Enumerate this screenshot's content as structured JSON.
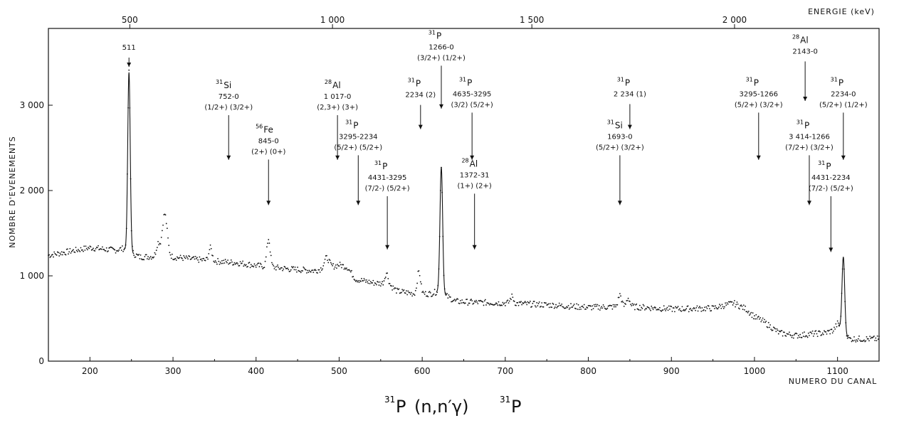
{
  "chart_data": {
    "type": "line",
    "title": "31P (n,n'γ) 31P",
    "xlabel": "NUMERO DU CANAL",
    "ylabel": "NOMBRE D'EVENEMENTS",
    "x2label": "ENERGIE (keV)",
    "xlim": [
      150,
      1150
    ],
    "ylim": [
      0,
      3900
    ],
    "xticks": [
      200,
      300,
      400,
      500,
      600,
      700,
      800,
      900,
      1000,
      1100
    ],
    "xtick_labels": [
      "200",
      "300",
      "400",
      "500",
      "600",
      "700",
      "800",
      "900",
      "1000",
      "1100"
    ],
    "yticks": [
      0,
      1000,
      2000,
      3000
    ],
    "ytick_labels": [
      "0",
      "1 000",
      "2 000",
      "3 000"
    ],
    "energy_ticks": [
      {
        "channel": 248,
        "label": "500"
      },
      {
        "channel": 492,
        "label": "1 000"
      },
      {
        "channel": 732,
        "label": "1 500"
      },
      {
        "channel": 976,
        "label": "2 000"
      }
    ],
    "grid": false,
    "spectrum": {
      "background": [
        [
          150,
          1240
        ],
        [
          200,
          1330
        ],
        [
          230,
          1300
        ],
        [
          240,
          1320
        ],
        [
          260,
          1220
        ],
        [
          280,
          1230
        ],
        [
          300,
          1220
        ],
        [
          340,
          1180
        ],
        [
          380,
          1150
        ],
        [
          400,
          1120
        ],
        [
          440,
          1080
        ],
        [
          470,
          1060
        ],
        [
          490,
          1100
        ],
        [
          500,
          1130
        ],
        [
          510,
          1100
        ],
        [
          520,
          960
        ],
        [
          540,
          920
        ],
        [
          560,
          900
        ],
        [
          570,
          820
        ],
        [
          590,
          790
        ],
        [
          610,
          790
        ],
        [
          620,
          820
        ],
        [
          640,
          700
        ],
        [
          660,
          690
        ],
        [
          700,
          680
        ],
        [
          750,
          660
        ],
        [
          800,
          630
        ],
        [
          850,
          640
        ],
        [
          900,
          610
        ],
        [
          950,
          620
        ],
        [
          975,
          680
        ],
        [
          990,
          610
        ],
        [
          1000,
          520
        ],
        [
          1010,
          470
        ],
        [
          1030,
          330
        ],
        [
          1050,
          300
        ],
        [
          1070,
          320
        ],
        [
          1085,
          330
        ],
        [
          1095,
          360
        ],
        [
          1100,
          440
        ],
        [
          1110,
          300
        ],
        [
          1115,
          260
        ],
        [
          1150,
          260
        ]
      ],
      "peaks": [
        {
          "center": 247,
          "height": 2100,
          "sigma": 1.5
        },
        {
          "center": 290,
          "height": 500,
          "sigma": 3
        },
        {
          "center": 282,
          "height": 150,
          "sigma": 2
        },
        {
          "center": 345,
          "height": 150,
          "sigma": 2
        },
        {
          "center": 415,
          "height": 330,
          "sigma": 2
        },
        {
          "center": 485,
          "height": 120,
          "sigma": 3
        },
        {
          "center": 557,
          "height": 130,
          "sigma": 2
        },
        {
          "center": 596,
          "height": 260,
          "sigma": 2
        },
        {
          "center": 623,
          "height": 1470,
          "sigma": 1.6
        },
        {
          "center": 708,
          "height": 80,
          "sigma": 2
        },
        {
          "center": 838,
          "height": 140,
          "sigma": 2
        },
        {
          "center": 848,
          "height": 100,
          "sigma": 2
        },
        {
          "center": 1107,
          "height": 880,
          "sigma": 1.6
        }
      ]
    },
    "annotations": [
      {
        "id": "a511",
        "iso": "",
        "iso_mass": "",
        "trans": "511",
        "spins": "",
        "x": 247,
        "top": 3650,
        "arrow_to": 3450
      },
      {
        "id": "si752",
        "iso": "Si",
        "iso_mass": "31",
        "trans": "752-0",
        "spins": "(1/2+) (3/2+)",
        "x": 367,
        "top": 3200,
        "arrow_to": 2360
      },
      {
        "id": "fe845",
        "iso": "Fe",
        "iso_mass": "56",
        "trans": "845-0",
        "spins": "(2+) (0+)",
        "x": 415,
        "top": 2680,
        "arrow_to": 1830
      },
      {
        "id": "al1017",
        "iso": "Al",
        "iso_mass": "28",
        "trans": "1 017-0",
        "spins": "(2,3+) (3+)",
        "x": 498,
        "top": 3200,
        "arrow_to": 2360
      },
      {
        "id": "p3295_2234",
        "iso": "P",
        "iso_mass": "31",
        "trans": "3295-2234",
        "spins": "(5/2+) (5/2+)",
        "x": 523,
        "top": 2730,
        "arrow_to": 1830
      },
      {
        "id": "p4431_3295",
        "iso": "P",
        "iso_mass": "31",
        "trans": "4431-3295",
        "spins": "(7/2-) (5/2+)",
        "x": 558,
        "top": 2250,
        "arrow_to": 1310
      },
      {
        "id": "p2234_2",
        "iso": "P",
        "iso_mass": "31",
        "trans": "2234 (2)",
        "spins": "",
        "x": 598,
        "top": 3220,
        "arrow_to": 2720
      },
      {
        "id": "p1266",
        "iso": "P",
        "iso_mass": "31",
        "trans": "1266-0",
        "spins": "(3/2+) (1/2+)",
        "x": 623,
        "top": 3780,
        "arrow_to": 2960
      },
      {
        "id": "p4635",
        "iso": "P",
        "iso_mass": "31",
        "trans": "4635-3295",
        "spins": "(3/2) (5/2+)",
        "x": 660,
        "top": 3230,
        "arrow_to": 2360
      },
      {
        "id": "al1372",
        "iso": "Al",
        "iso_mass": "28",
        "trans": "1372-31",
        "spins": "(1+) (2+)",
        "x": 663,
        "top": 2280,
        "arrow_to": 1310
      },
      {
        "id": "p2234_1",
        "iso": "P",
        "iso_mass": "31",
        "trans": "2 234 (1)",
        "spins": "",
        "x": 850,
        "top": 3230,
        "arrow_to": 2720
      },
      {
        "id": "si1693",
        "iso": "Si",
        "iso_mass": "31",
        "trans": "1693-0",
        "spins": "(5/2+) (3/2+)",
        "x": 838,
        "top": 2730,
        "arrow_to": 1830
      },
      {
        "id": "p3295_1266",
        "iso": "P",
        "iso_mass": "31",
        "trans": "3295-1266",
        "spins": "(5/2+) (3/2+)",
        "x": 1005,
        "top": 3230,
        "arrow_to": 2360
      },
      {
        "id": "al2143",
        "iso": "Al",
        "iso_mass": "28",
        "trans": "2143-0",
        "spins": "",
        "x": 1061,
        "top": 3730,
        "arrow_to": 3050
      },
      {
        "id": "p3414",
        "iso": "P",
        "iso_mass": "31",
        "trans": "3 414-1266",
        "spins": "(7/2+) (3/2+)",
        "x": 1066,
        "top": 2730,
        "arrow_to": 1830
      },
      {
        "id": "p2234_0",
        "iso": "P",
        "iso_mass": "31",
        "trans": "2234-0",
        "spins": "(5/2+) (1/2+)",
        "x": 1107,
        "top": 3230,
        "arrow_to": 2360
      },
      {
        "id": "p4431_2234",
        "iso": "P",
        "iso_mass": "31",
        "trans": "4431-2234",
        "spins": "(7/2-) (5/2+)",
        "x": 1092,
        "top": 2250,
        "arrow_to": 1280
      }
    ],
    "reaction_label": {
      "mass_left": "31",
      "sym_left": "P",
      "mid": "(n,n′γ)",
      "mass_right": "31",
      "sym_right": "P"
    }
  }
}
